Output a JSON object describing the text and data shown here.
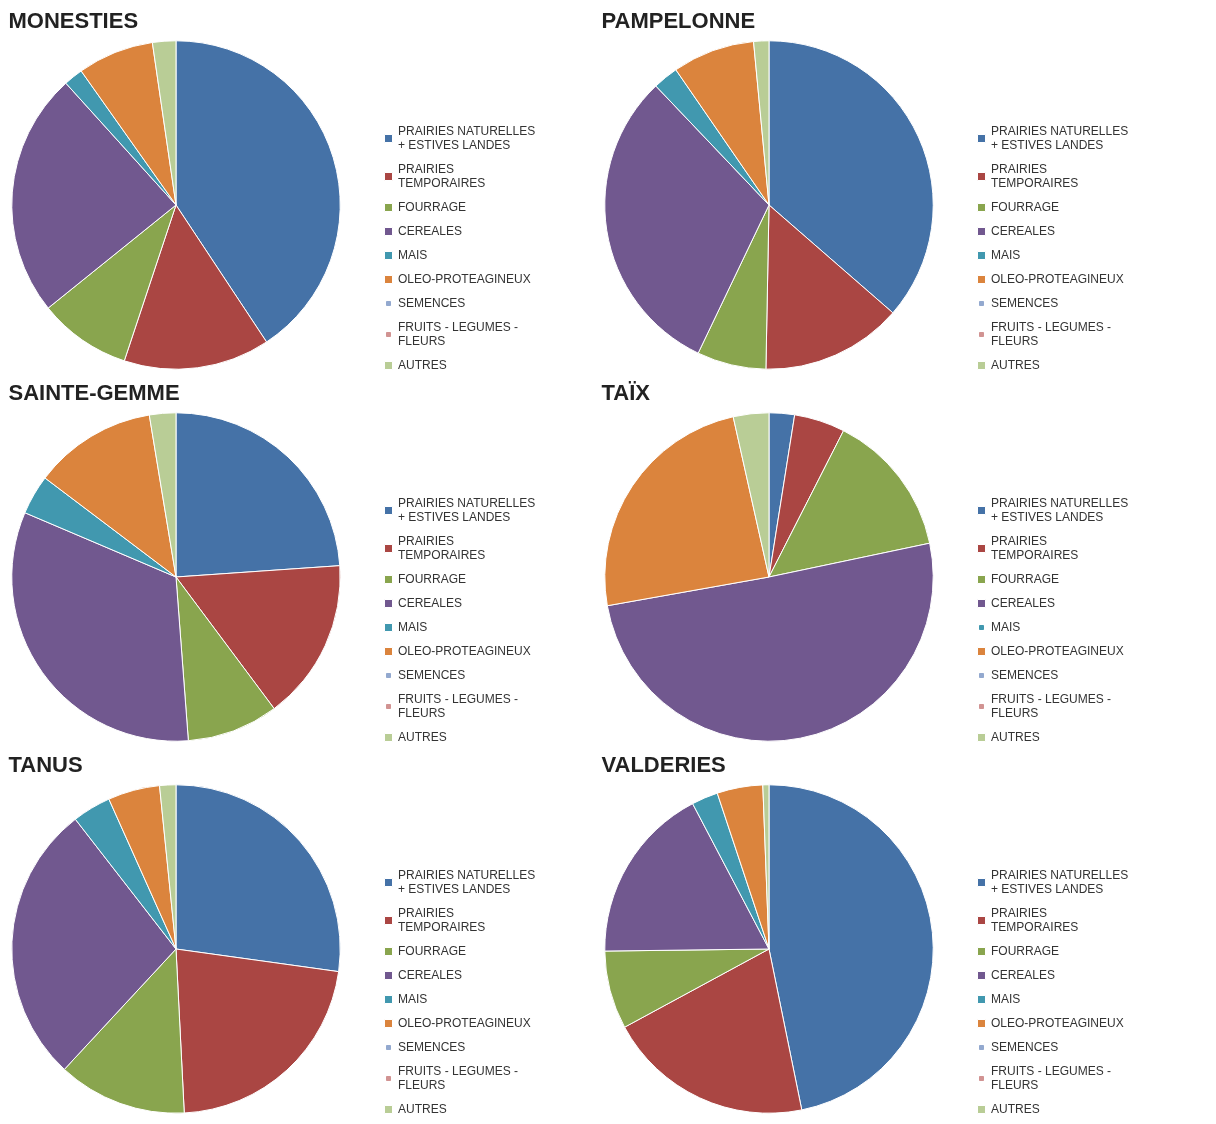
{
  "chart_data": [
    {
      "type": "pie",
      "title": "MONESTIES",
      "categories": [
        "PRAIRIES NATURELLES + ESTIVES LANDES",
        "PRAIRIES TEMPORAIRES",
        "FOURRAGE",
        "CEREALES",
        "MAIS",
        "OLEO-PROTEAGINEUX",
        "SEMENCES",
        "FRUITS - LEGUMES - FLEURS",
        "AUTRES"
      ],
      "values": [
        40.7,
        14.4,
        9.1,
        24.1,
        1.9,
        7.5,
        0,
        0,
        2.3
      ],
      "colors": [
        "#4572a7",
        "#aa4643",
        "#89a54e",
        "#71588f",
        "#4198af",
        "#db843d",
        "#93a9cf",
        "#d19392",
        "#b9cd96"
      ],
      "legend": "right"
    },
    {
      "type": "pie",
      "title": "PAMPELONNE",
      "categories": [
        "PRAIRIES NATURELLES + ESTIVES LANDES",
        "PRAIRIES TEMPORAIRES",
        "FOURRAGE",
        "CEREALES",
        "MAIS",
        "OLEO-PROTEAGINEUX",
        "SEMENCES",
        "FRUITS - LEGUMES - FLEURS",
        "AUTRES"
      ],
      "values": [
        36.4,
        13.9,
        6.8,
        30.8,
        2.5,
        8.1,
        0,
        0,
        1.5
      ],
      "colors": [
        "#4572a7",
        "#aa4643",
        "#89a54e",
        "#71588f",
        "#4198af",
        "#db843d",
        "#93a9cf",
        "#d19392",
        "#b9cd96"
      ],
      "legend": "right"
    },
    {
      "type": "pie",
      "title": "SAINTE-GEMME",
      "categories": [
        "PRAIRIES NATURELLES + ESTIVES LANDES",
        "PRAIRIES TEMPORAIRES",
        "FOURRAGE",
        "CEREALES",
        "MAIS",
        "OLEO-PROTEAGINEUX",
        "SEMENCES",
        "FRUITS - LEGUMES - FLEURS",
        "AUTRES"
      ],
      "values": [
        23.9,
        15.9,
        9.0,
        32.6,
        3.9,
        12.1,
        0,
        0,
        2.6
      ],
      "colors": [
        "#4572a7",
        "#aa4643",
        "#89a54e",
        "#71588f",
        "#4198af",
        "#db843d",
        "#93a9cf",
        "#d19392",
        "#b9cd96"
      ],
      "legend": "right"
    },
    {
      "type": "pie",
      "title": "TAÏX",
      "categories": [
        "PRAIRIES NATURELLES + ESTIVES LANDES",
        "PRAIRIES TEMPORAIRES",
        "FOURRAGE",
        "CEREALES",
        "MAIS",
        "OLEO-PROTEAGINEUX",
        "SEMENCES",
        "FRUITS - LEGUMES - FLEURS",
        "AUTRES"
      ],
      "values": [
        2.5,
        5.0,
        14.2,
        50.5,
        0,
        24.3,
        0,
        0,
        3.5
      ],
      "colors": [
        "#4572a7",
        "#aa4643",
        "#89a54e",
        "#71588f",
        "#4198af",
        "#db843d",
        "#93a9cf",
        "#d19392",
        "#b9cd96"
      ],
      "legend": "right"
    },
    {
      "type": "pie",
      "title": "TANUS",
      "categories": [
        "PRAIRIES NATURELLES + ESTIVES LANDES",
        "PRAIRIES TEMPORAIRES",
        "FOURRAGE",
        "CEREALES",
        "MAIS",
        "OLEO-PROTEAGINEUX",
        "SEMENCES",
        "FRUITS - LEGUMES - FLEURS",
        "AUTRES"
      ],
      "values": [
        27.2,
        22.0,
        12.7,
        27.6,
        3.8,
        5.1,
        0,
        0,
        1.6
      ],
      "colors": [
        "#4572a7",
        "#aa4643",
        "#89a54e",
        "#71588f",
        "#4198af",
        "#db843d",
        "#93a9cf",
        "#d19392",
        "#b9cd96"
      ],
      "legend": "right"
    },
    {
      "type": "pie",
      "title": "VALDERIES",
      "categories": [
        "PRAIRIES NATURELLES + ESTIVES LANDES",
        "PRAIRIES TEMPORAIRES",
        "FOURRAGE",
        "CEREALES",
        "MAIS",
        "OLEO-PROTEAGINEUX",
        "SEMENCES",
        "FRUITS - LEGUMES - FLEURS",
        "AUTRES"
      ],
      "values": [
        46.8,
        20.3,
        7.7,
        17.5,
        2.6,
        4.5,
        0,
        0,
        0.6
      ],
      "colors": [
        "#4572a7",
        "#aa4643",
        "#89a54e",
        "#71588f",
        "#4198af",
        "#db843d",
        "#93a9cf",
        "#d19392",
        "#b9cd96"
      ],
      "legend": "right"
    }
  ]
}
